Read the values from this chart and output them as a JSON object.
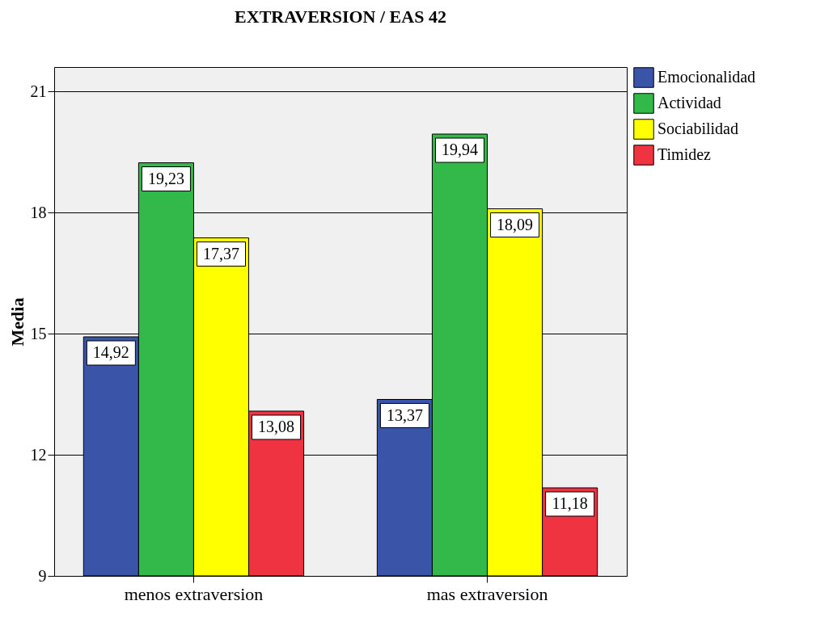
{
  "chart_data": {
    "type": "bar",
    "title": "EXTRAVERSION / EAS 42",
    "ylabel": "Media",
    "categories": [
      "menos extraversion",
      "mas extraversion"
    ],
    "series": [
      {
        "name": "Emocionalidad",
        "color": "#3a55a8",
        "values": [
          14.92,
          13.37
        ],
        "value_labels": [
          "14,92",
          "13,37"
        ]
      },
      {
        "name": "Actividad",
        "color": "#33b84a",
        "values": [
          19.23,
          19.94
        ],
        "value_labels": [
          "19,23",
          "19,94"
        ]
      },
      {
        "name": "Sociabilidad",
        "color": "#ffff00",
        "values": [
          17.37,
          18.09
        ],
        "value_labels": [
          "17,37",
          "18,09"
        ]
      },
      {
        "name": "Timidez",
        "color": "#ef3340",
        "values": [
          13.08,
          11.18
        ],
        "value_labels": [
          "13,08",
          "11,18"
        ]
      }
    ],
    "ylim": [
      9,
      21.6
    ],
    "yticks": [
      9,
      12,
      15,
      18,
      21
    ],
    "grid": "y",
    "legend": "right"
  }
}
